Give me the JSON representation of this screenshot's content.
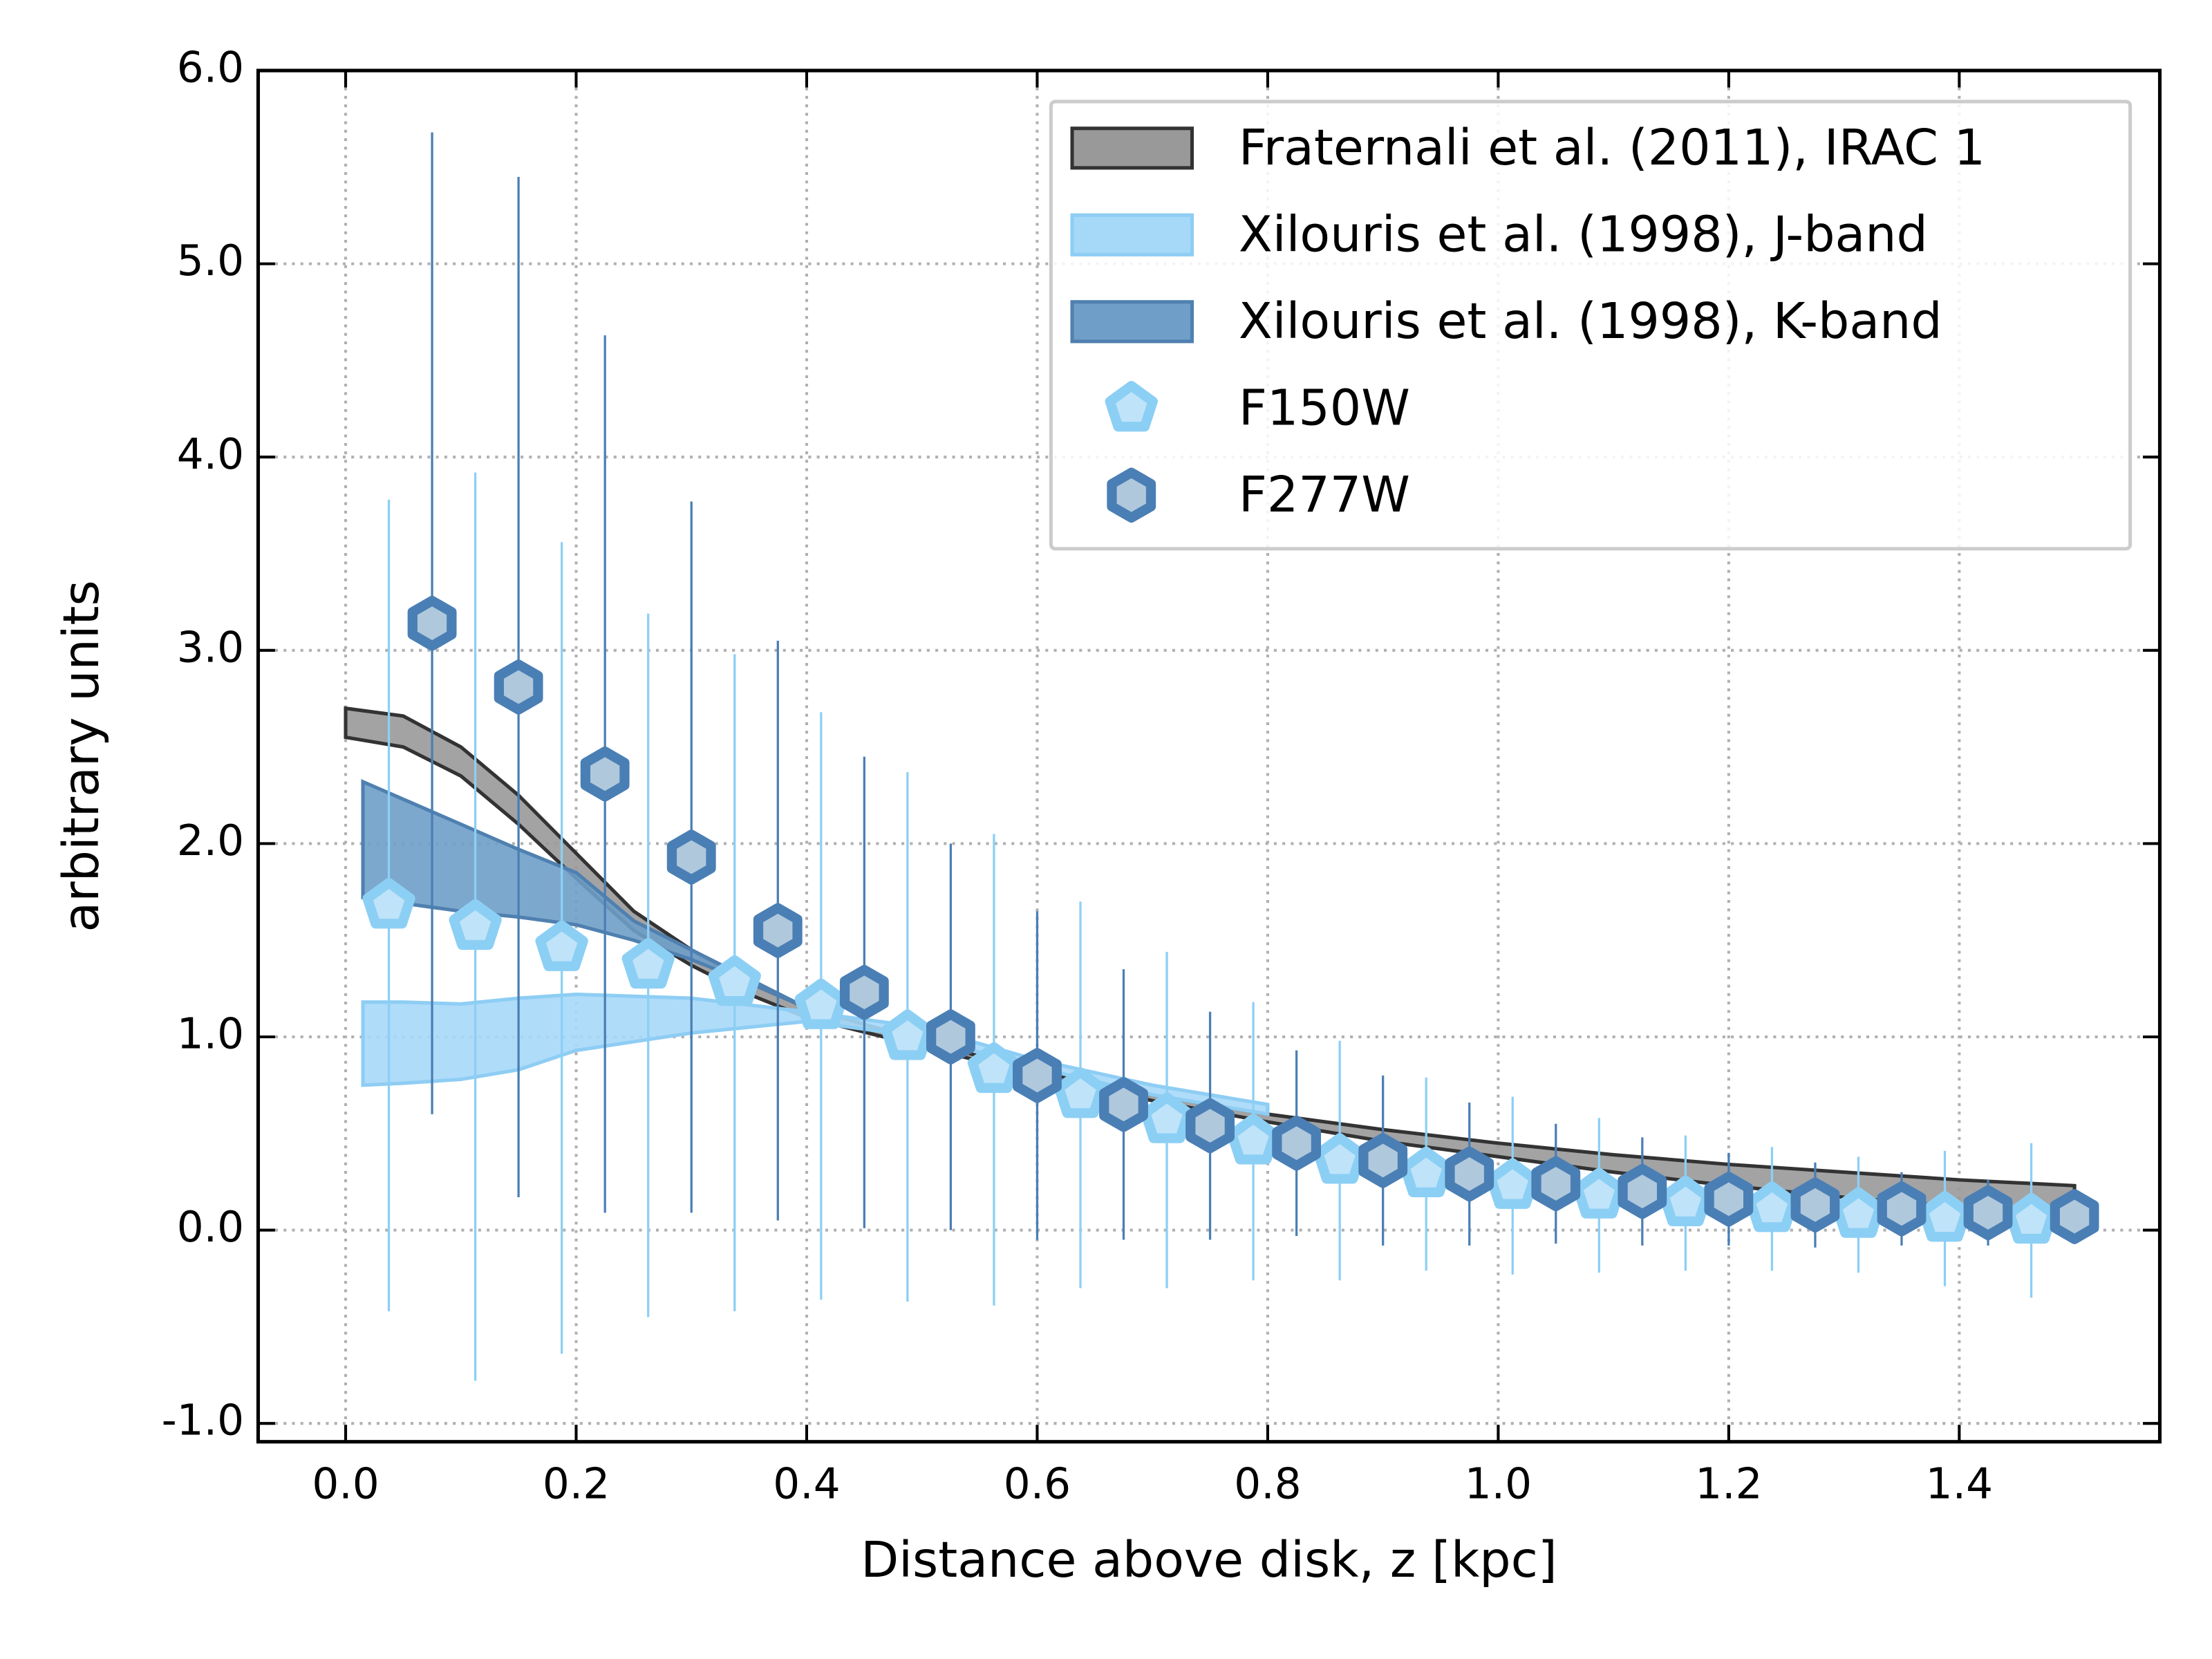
{
  "chart_data": {
    "type": "band-errorbar",
    "xlabel": "Distance above disk, z [kpc]",
    "ylabel": "arbitrary units",
    "xlim": [
      -0.0759,
      1.574
    ],
    "ylim": [
      -1.095,
      6.0
    ],
    "xticks": [
      {
        "value": 0,
        "label": "0.0"
      },
      {
        "value": 0.2,
        "label": "0.2"
      },
      {
        "value": 0.4,
        "label": "0.4"
      },
      {
        "value": 0.6,
        "label": "0.6"
      },
      {
        "value": 0.8,
        "label": "0.8"
      },
      {
        "value": 1.0,
        "label": "1.0"
      },
      {
        "value": 1.2,
        "label": "1.2"
      },
      {
        "value": 1.4,
        "label": "1.4"
      }
    ],
    "yticks": [
      {
        "value": -1,
        "label": "-1.0"
      },
      {
        "value": 0,
        "label": "0.0"
      },
      {
        "value": 1,
        "label": "1.0"
      },
      {
        "value": 2,
        "label": "2.0"
      },
      {
        "value": 3,
        "label": "3.0"
      },
      {
        "value": 4,
        "label": "4.0"
      },
      {
        "value": 5,
        "label": "5.0"
      },
      {
        "value": 6,
        "label": "6.0"
      }
    ],
    "grid": true,
    "legend": "upper right",
    "bands": [
      {
        "name": "Fraternali et al. (2011), IRAC 1",
        "color": "#999999",
        "edge": "#333333",
        "x": [
          0,
          0.05,
          0.1,
          0.15,
          0.2,
          0.25,
          0.3,
          0.35,
          0.4,
          0.5,
          0.6,
          0.7,
          0.8,
          0.9,
          1.0,
          1.1,
          1.2,
          1.3,
          1.4,
          1.5
        ],
        "upper": [
          2.7,
          2.66,
          2.5,
          2.25,
          1.95,
          1.65,
          1.45,
          1.28,
          1.15,
          0.98,
          0.82,
          0.7,
          0.6,
          0.52,
          0.45,
          0.39,
          0.34,
          0.3,
          0.26,
          0.23
        ],
        "lower": [
          2.55,
          2.5,
          2.35,
          2.1,
          1.82,
          1.55,
          1.37,
          1.22,
          1.1,
          0.95,
          0.8,
          0.67,
          0.56,
          0.46,
          0.38,
          0.3,
          0.23,
          0.17,
          0.12,
          0.08
        ]
      },
      {
        "name": "Xilouris et al. (1998), J-band",
        "color": "#a6d8f8",
        "edge": "#8ecdf4",
        "x": [
          0.015,
          0.05,
          0.1,
          0.15,
          0.2,
          0.3,
          0.4,
          0.5,
          0.6,
          0.7,
          0.8
        ],
        "upper": [
          1.18,
          1.18,
          1.17,
          1.2,
          1.22,
          1.2,
          1.13,
          1.05,
          0.88,
          0.75,
          0.65
        ],
        "lower": [
          0.75,
          0.76,
          0.78,
          0.83,
          0.93,
          1.02,
          1.08,
          1.0,
          0.84,
          0.7,
          0.6
        ]
      },
      {
        "name": "Xilouris et al. (1998), K-band",
        "color": "#6f9fc8",
        "edge": "#4f80b0",
        "x": [
          0.015,
          0.1,
          0.15,
          0.2,
          0.25,
          0.3,
          0.35,
          0.4
        ],
        "upper": [
          2.32,
          2.1,
          1.97,
          1.85,
          1.6,
          1.45,
          1.3,
          1.15
        ],
        "lower": [
          1.72,
          1.65,
          1.62,
          1.58,
          1.5,
          1.4,
          1.28,
          1.15
        ]
      }
    ],
    "series": [
      {
        "name": "F150W",
        "marker": "pentagon",
        "color": "#8ccff5",
        "face": "#bfe3f8",
        "x": [
          0.0375,
          0.1125,
          0.1875,
          0.2625,
          0.3375,
          0.4125,
          0.4875,
          0.5625,
          0.6375,
          0.7125,
          0.7875,
          0.8625,
          0.9375,
          1.0125,
          1.0875,
          1.1625,
          1.2375,
          1.3125,
          1.3875,
          1.4625
        ],
        "values": [
          1.68,
          1.57,
          1.46,
          1.37,
          1.28,
          1.16,
          1.0,
          0.83,
          0.7,
          0.57,
          0.46,
          0.36,
          0.29,
          0.23,
          0.18,
          0.14,
          0.11,
          0.08,
          0.06,
          0.05
        ],
        "errors": [
          2.1,
          2.35,
          2.1,
          1.82,
          1.7,
          1.52,
          1.37,
          1.22,
          1.0,
          0.87,
          0.72,
          0.62,
          0.5,
          0.46,
          0.4,
          0.35,
          0.32,
          0.3,
          0.35,
          0.4
        ]
      },
      {
        "name": "F277W",
        "marker": "hexagon",
        "color": "#4a7fb5",
        "face": "#b0c8dc",
        "x": [
          0.075,
          0.15,
          0.225,
          0.3,
          0.375,
          0.45,
          0.525,
          0.6,
          0.675,
          0.75,
          0.825,
          0.9,
          0.975,
          1.05,
          1.125,
          1.2,
          1.275,
          1.35,
          1.425,
          1.5
        ],
        "values": [
          3.14,
          2.81,
          2.36,
          1.93,
          1.55,
          1.23,
          1.0,
          0.8,
          0.65,
          0.54,
          0.45,
          0.36,
          0.29,
          0.24,
          0.2,
          0.16,
          0.13,
          0.11,
          0.09,
          0.07
        ],
        "errors": [
          2.54,
          2.64,
          2.27,
          1.84,
          1.5,
          1.22,
          1.0,
          0.85,
          0.7,
          0.59,
          0.48,
          0.44,
          0.37,
          0.31,
          0.28,
          0.24,
          0.22,
          0.19,
          0.17,
          0.13
        ]
      }
    ]
  }
}
